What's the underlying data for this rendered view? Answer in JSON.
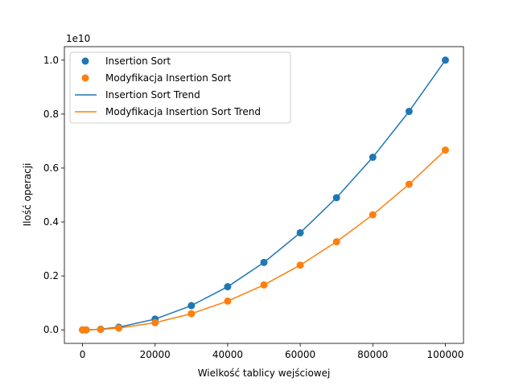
{
  "chart_data": {
    "type": "line",
    "title": "",
    "xlabel": "Wielkość tablicy wejściowej",
    "ylabel": "Ilość operacji",
    "y_offset_label": "1e10",
    "xlim": [
      -5000,
      105000
    ],
    "ylim": [
      -0.05,
      1.05
    ],
    "x_ticks": [
      0,
      20000,
      40000,
      60000,
      80000,
      100000
    ],
    "x_tick_labels": [
      "0",
      "20000",
      "40000",
      "60000",
      "80000",
      "100000"
    ],
    "y_ticks": [
      0.0,
      0.2,
      0.4,
      0.6,
      0.8,
      1.0
    ],
    "y_tick_labels": [
      "0.0",
      "0.2",
      "0.4",
      "0.6",
      "0.8",
      "1.0"
    ],
    "grid": false,
    "legend_position": "top-left",
    "x": [
      0,
      1000,
      5000,
      10000,
      20000,
      30000,
      40000,
      50000,
      60000,
      70000,
      80000,
      90000,
      100000
    ],
    "series": [
      {
        "name": "Insertion Sort",
        "kind": "scatter",
        "color": "#1f77b4",
        "values": [
          0.0,
          0.0001,
          0.0025,
          0.01,
          0.04,
          0.09,
          0.16,
          0.25,
          0.36,
          0.49,
          0.64,
          0.81,
          1.0
        ]
      },
      {
        "name": "Modyfikacja Insertion Sort",
        "kind": "scatter",
        "color": "#ff7f0e",
        "values": [
          0.0,
          7e-05,
          0.0017,
          0.0067,
          0.0267,
          0.06,
          0.1067,
          0.1667,
          0.24,
          0.3267,
          0.4267,
          0.54,
          0.6667
        ]
      },
      {
        "name": "Insertion Sort Trend",
        "kind": "line",
        "color": "#1f77b4",
        "values": [
          0.0,
          0.0001,
          0.0025,
          0.01,
          0.04,
          0.09,
          0.16,
          0.25,
          0.36,
          0.49,
          0.64,
          0.81,
          1.0
        ]
      },
      {
        "name": "Modyfikacja Insertion Sort Trend",
        "kind": "line",
        "color": "#ff7f0e",
        "values": [
          0.0,
          7e-05,
          0.0017,
          0.0067,
          0.0267,
          0.06,
          0.1067,
          0.1667,
          0.24,
          0.3267,
          0.4267,
          0.54,
          0.6667
        ]
      }
    ]
  }
}
